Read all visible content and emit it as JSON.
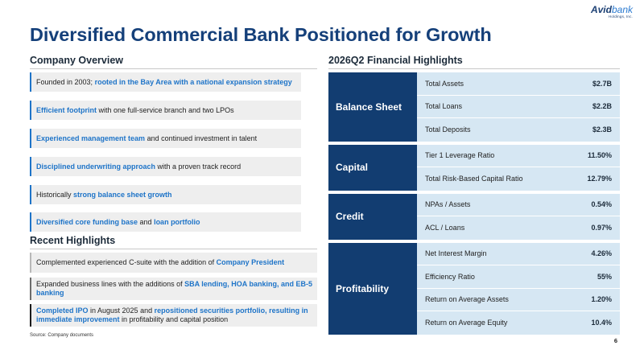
{
  "logo": {
    "part1": "Avid",
    "part2": "bank",
    "sub": "Holdings, Inc."
  },
  "title": "Diversified Commercial Bank Positioned for Growth",
  "overview": {
    "heading": "Company Overview",
    "items": [
      [
        {
          "t": "Founded in 2003; ",
          "h": false
        },
        {
          "t": "rooted in the Bay Area with a national expansion strategy",
          "h": true
        }
      ],
      [
        {
          "t": "Efficient footprint",
          "h": true
        },
        {
          "t": " with one full-service branch and two LPOs",
          "h": false
        }
      ],
      [
        {
          "t": "Experienced management team",
          "h": true
        },
        {
          "t": " and continued investment in talent",
          "h": false
        }
      ],
      [
        {
          "t": "Disciplined underwriting approach",
          "h": true
        },
        {
          "t": " with a proven track record",
          "h": false
        }
      ],
      [
        {
          "t": "Historically ",
          "h": false
        },
        {
          "t": "strong balance sheet growth",
          "h": true
        }
      ],
      [
        {
          "t": "Diversified core funding base",
          "h": true
        },
        {
          "t": " and ",
          "h": false
        },
        {
          "t": "loan portfolio",
          "h": true
        }
      ]
    ]
  },
  "recent": {
    "heading": "Recent Highlights",
    "items": [
      [
        {
          "t": "Complemented experienced C-suite with the addition of ",
          "h": false
        },
        {
          "t": "Company President",
          "h": true
        }
      ],
      [
        {
          "t": "Expanded business lines with the additions of ",
          "h": false
        },
        {
          "t": "SBA lending, HOA banking, and EB-5 banking",
          "h": true
        }
      ],
      [
        {
          "t": "Completed IPO",
          "h": true
        },
        {
          "t": " in August 2025 and ",
          "h": false
        },
        {
          "t": "repositioned securities portfolio, resulting in immediate improvement",
          "h": true
        },
        {
          "t": " in profitability and capital position",
          "h": false
        }
      ]
    ]
  },
  "financials": {
    "heading": "2026Q2 Financial Highlights",
    "groups": [
      {
        "category": "Balance Sheet",
        "rows": [
          {
            "label": "Total Assets",
            "value": "$2.7B"
          },
          {
            "label": "Total Loans",
            "value": "$2.2B"
          },
          {
            "label": "Total Deposits",
            "value": "$2.3B"
          }
        ]
      },
      {
        "category": "Capital",
        "rows": [
          {
            "label": "Tier 1 Leverage Ratio",
            "value": "11.50%"
          },
          {
            "label": "Total Risk-Based Capital Ratio",
            "value": "12.79%"
          }
        ]
      },
      {
        "category": "Credit",
        "rows": [
          {
            "label": "NPAs / Assets",
            "value": "0.54%"
          },
          {
            "label": "ACL / Loans",
            "value": "0.97%"
          }
        ]
      },
      {
        "category": "Profitability",
        "rows": [
          {
            "label": "Net Interest Margin",
            "value": "4.26%"
          },
          {
            "label": "Efficiency Ratio",
            "value": "55%"
          },
          {
            "label": "Return on Average Assets",
            "value": "1.20%"
          },
          {
            "label": "Return on Average Equity",
            "value": "10.4%"
          }
        ]
      }
    ]
  },
  "source": "Source: Company documents",
  "page_number": "6",
  "colors": {
    "title": "#15407a",
    "accent": "#1e74c8",
    "category_bg": "#123d71",
    "row_bg": "#d6e7f3"
  }
}
